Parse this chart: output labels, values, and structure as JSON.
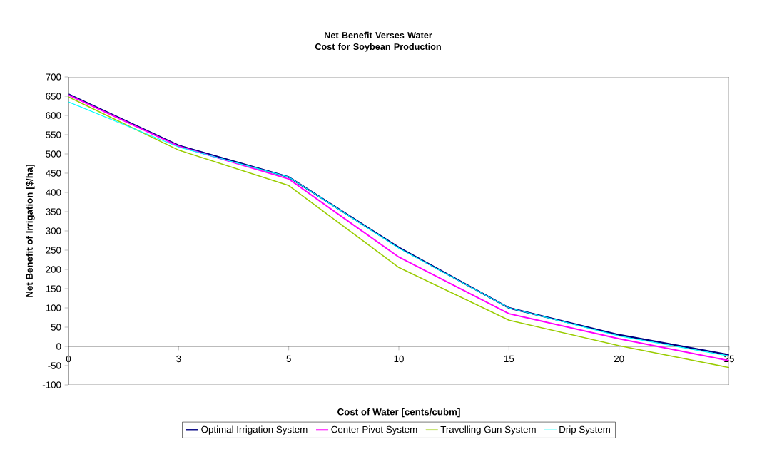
{
  "chart_data": {
    "type": "line",
    "title": "Net Benefit Verses Water Cost for Soybean Production",
    "xlabel": "Cost of Water [cents/cubm]",
    "ylabel": "Net Benefit of Irrigation [$/ha]",
    "categories": [
      "0",
      "3",
      "5",
      "10",
      "15",
      "20",
      "25"
    ],
    "series": [
      {
        "name": "Optimal Irrigation System",
        "color": "#000080",
        "values": [
          655,
          522,
          440,
          257,
          100,
          30,
          -22
        ]
      },
      {
        "name": "Center Pivot System",
        "color": "#ff00ff",
        "values": [
          653,
          520,
          435,
          232,
          85,
          20,
          -37
        ]
      },
      {
        "name": "Travelling Gun System",
        "color": "#99cc00",
        "values": [
          648,
          510,
          418,
          205,
          68,
          2,
          -55
        ]
      },
      {
        "name": "Drip System",
        "color": "#00ffff",
        "values": [
          635,
          518,
          440,
          255,
          100,
          27,
          -25
        ]
      }
    ],
    "ylim": [
      -100,
      700
    ],
    "yticks": [
      -100,
      -50,
      0,
      50,
      100,
      150,
      200,
      250,
      300,
      350,
      400,
      450,
      500,
      550,
      600,
      650,
      700
    ],
    "grid": false,
    "legend": "bottom",
    "marker": "none",
    "line_style": "solid"
  }
}
